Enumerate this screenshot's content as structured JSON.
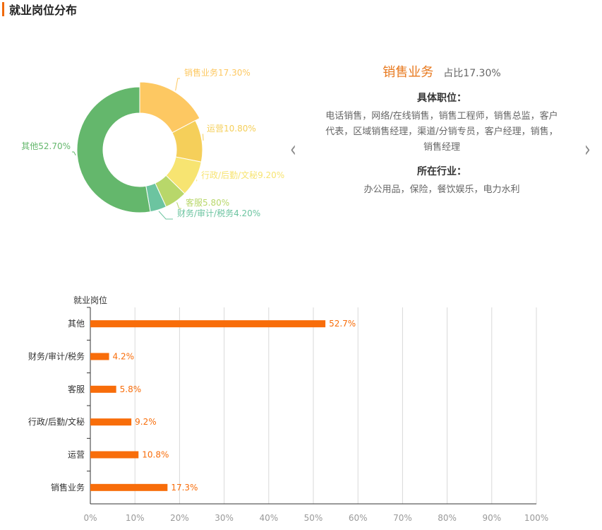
{
  "section_title": "就业岗位分布",
  "detail": {
    "name": "销售业务",
    "ratio": "占比17.30%",
    "positions_label": "具体职位：",
    "positions": "电话销售，网络/在线销售，销售工程师，销售总监，客户代表，区域销售经理，渠道/分销专员，客户经理，销售，销售经理",
    "industry_label": "所在行业：",
    "industries": "办公用品，保险，餐饮娱乐，电力水利"
  },
  "colors": {
    "accent": "#f06a0c",
    "bar": "#f86d0a"
  },
  "chart_data": [
    {
      "type": "pie",
      "variant": "donut",
      "slices": [
        {
          "label": "销售业务",
          "value": 17.3,
          "text": "销售业务17.30%",
          "color": "#fdc862"
        },
        {
          "label": "运营",
          "value": 10.8,
          "text": "运营10.80%",
          "color": "#f5cf5a"
        },
        {
          "label": "行政/后勤/文秘",
          "value": 9.2,
          "text": "行政/后勤/文秘9.20%",
          "color": "#f7e471"
        },
        {
          "label": "客服",
          "value": 5.8,
          "text": "客服5.80%",
          "color": "#b8d76a"
        },
        {
          "label": "财务/审计/税务",
          "value": 4.2,
          "text": "财务/审计/税务4.20%",
          "color": "#6cc4a0"
        },
        {
          "label": "其他",
          "value": 52.7,
          "text": "其他52.70%",
          "color": "#64b76c"
        }
      ],
      "highlighted": "销售业务"
    },
    {
      "type": "bar",
      "orientation": "horizontal",
      "ylabel": "就业岗位",
      "categories": [
        "其他",
        "财务/审计/税务",
        "客服",
        "行政/后勤/文秘",
        "运营",
        "销售业务"
      ],
      "values": [
        52.7,
        4.2,
        5.8,
        9.2,
        10.8,
        17.3
      ],
      "value_labels": [
        "52.7%",
        "4.2%",
        "5.8%",
        "9.2%",
        "10.8%",
        "17.3%"
      ],
      "xlim": [
        0,
        100
      ],
      "xticks": [
        "0%",
        "10%",
        "20%",
        "30%",
        "40%",
        "50%",
        "60%",
        "70%",
        "80%",
        "90%",
        "100%"
      ],
      "grid": true
    }
  ]
}
